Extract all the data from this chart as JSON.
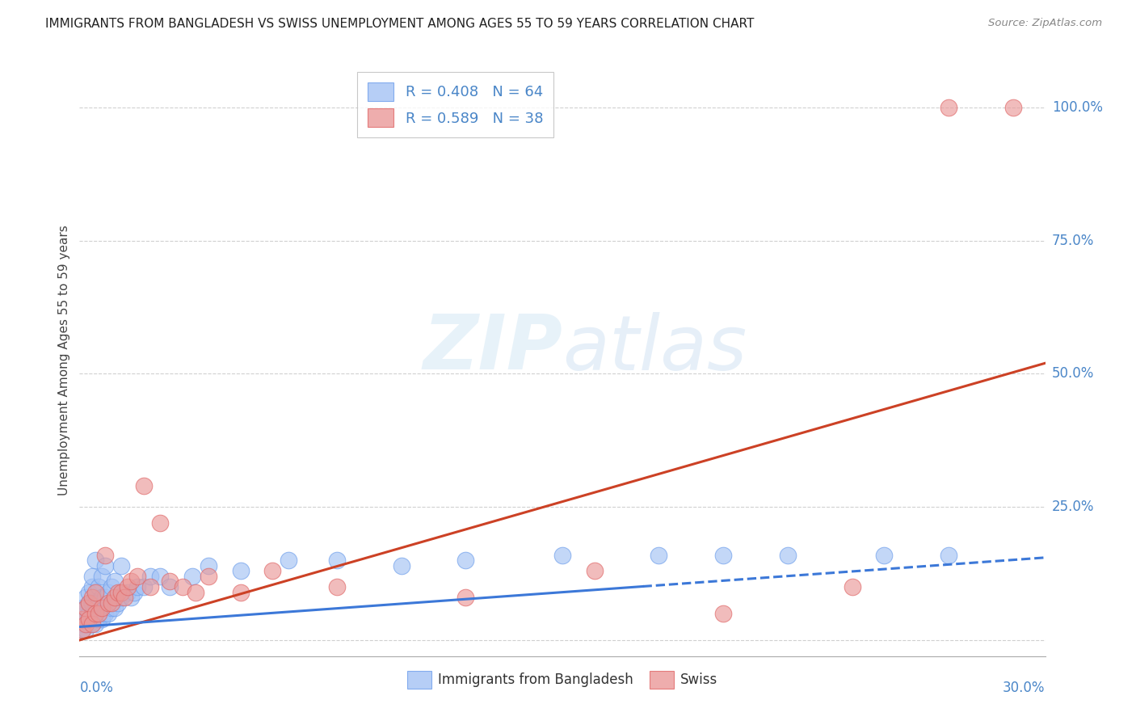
{
  "title": "IMMIGRANTS FROM BANGLADESH VS SWISS UNEMPLOYMENT AMONG AGES 55 TO 59 YEARS CORRELATION CHART",
  "source": "Source: ZipAtlas.com",
  "ylabel": "Unemployment Among Ages 55 to 59 years",
  "right_yticklabels": [
    "25.0%",
    "50.0%",
    "75.0%",
    "100.0%"
  ],
  "right_ytick_vals": [
    0.25,
    0.5,
    0.75,
    1.0
  ],
  "xlim": [
    0.0,
    0.3
  ],
  "ylim": [
    -0.03,
    1.08
  ],
  "legend1_label": "R = 0.408   N = 64",
  "legend2_label": "R = 0.589   N = 38",
  "legend_bottom_label1": "Immigrants from Bangladesh",
  "legend_bottom_label2": "Swiss",
  "color_blue_fill": "#a4c2f4",
  "color_blue_edge": "#6d9eeb",
  "color_pink_fill": "#ea9999",
  "color_pink_edge": "#e06666",
  "color_line_blue": "#3c78d8",
  "color_line_pink": "#cc4125",
  "color_right_axis": "#4a86c8",
  "watermark_color": "#d0e4f7",
  "grid_color": "#d0d0d0",
  "background_color": "#ffffff",
  "blue_scatter_x": [
    0.001,
    0.001,
    0.001,
    0.001,
    0.001,
    0.002,
    0.002,
    0.002,
    0.002,
    0.002,
    0.002,
    0.003,
    0.003,
    0.003,
    0.003,
    0.003,
    0.004,
    0.004,
    0.004,
    0.004,
    0.004,
    0.005,
    0.005,
    0.005,
    0.005,
    0.006,
    0.006,
    0.006,
    0.007,
    0.007,
    0.007,
    0.008,
    0.008,
    0.008,
    0.009,
    0.009,
    0.01,
    0.01,
    0.011,
    0.011,
    0.012,
    0.013,
    0.013,
    0.015,
    0.016,
    0.017,
    0.018,
    0.02,
    0.022,
    0.025,
    0.028,
    0.035,
    0.04,
    0.05,
    0.065,
    0.08,
    0.1,
    0.12,
    0.15,
    0.18,
    0.2,
    0.22,
    0.25,
    0.27
  ],
  "blue_scatter_y": [
    0.02,
    0.03,
    0.04,
    0.05,
    0.06,
    0.02,
    0.03,
    0.04,
    0.05,
    0.06,
    0.08,
    0.03,
    0.04,
    0.05,
    0.07,
    0.09,
    0.03,
    0.05,
    0.07,
    0.1,
    0.12,
    0.03,
    0.05,
    0.07,
    0.15,
    0.04,
    0.07,
    0.1,
    0.04,
    0.08,
    0.12,
    0.05,
    0.08,
    0.14,
    0.05,
    0.09,
    0.06,
    0.1,
    0.06,
    0.11,
    0.07,
    0.08,
    0.14,
    0.09,
    0.08,
    0.09,
    0.1,
    0.1,
    0.12,
    0.12,
    0.1,
    0.12,
    0.14,
    0.13,
    0.15,
    0.15,
    0.14,
    0.15,
    0.16,
    0.16,
    0.16,
    0.16,
    0.16,
    0.16
  ],
  "pink_scatter_x": [
    0.001,
    0.001,
    0.002,
    0.002,
    0.003,
    0.003,
    0.004,
    0.004,
    0.005,
    0.005,
    0.006,
    0.007,
    0.008,
    0.009,
    0.01,
    0.011,
    0.012,
    0.013,
    0.014,
    0.015,
    0.016,
    0.018,
    0.02,
    0.022,
    0.025,
    0.028,
    0.032,
    0.036,
    0.04,
    0.05,
    0.06,
    0.08,
    0.12,
    0.16,
    0.2,
    0.24,
    0.27,
    0.29
  ],
  "pink_scatter_y": [
    0.02,
    0.04,
    0.03,
    0.06,
    0.04,
    0.07,
    0.03,
    0.08,
    0.05,
    0.09,
    0.05,
    0.06,
    0.16,
    0.07,
    0.07,
    0.08,
    0.09,
    0.09,
    0.08,
    0.1,
    0.11,
    0.12,
    0.29,
    0.1,
    0.22,
    0.11,
    0.1,
    0.09,
    0.12,
    0.09,
    0.13,
    0.1,
    0.08,
    0.13,
    0.05,
    0.1,
    1.0,
    1.0
  ],
  "blue_line_x0": 0.0,
  "blue_line_x_dash_start": 0.175,
  "blue_line_x1": 0.3,
  "blue_line_y0": 0.025,
  "blue_line_y1": 0.155,
  "pink_line_x0": 0.0,
  "pink_line_x1": 0.3,
  "pink_line_y0": 0.0,
  "pink_line_y1": 0.52
}
